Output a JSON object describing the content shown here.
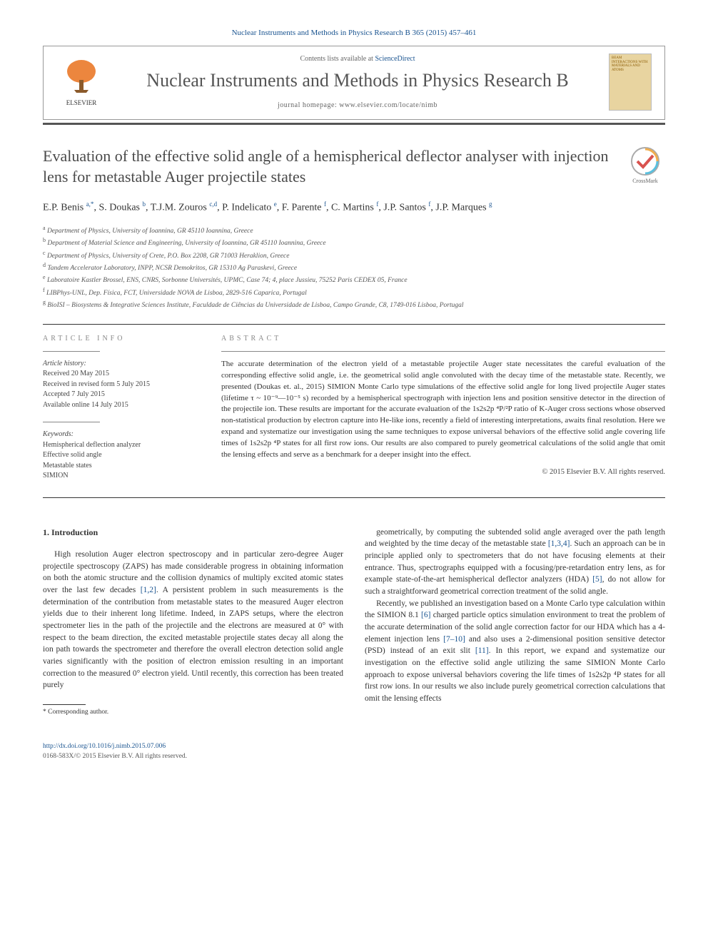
{
  "header": {
    "citation": "Nuclear Instruments and Methods in Physics Research B 365 (2015) 457–461",
    "contents_prefix": "Contents lists available at ",
    "contents_link": "ScienceDirect",
    "journal_name": "Nuclear Instruments and Methods in Physics Research B",
    "homepage_prefix": "journal homepage: ",
    "homepage_url": "www.elsevier.com/locate/nimb",
    "elsevier_label": "ELSEVIER",
    "cover_text": "BEAM INTERACTIONS WITH MATERIALS AND ATOMS"
  },
  "article": {
    "title": "Evaluation of the effective solid angle of a hemispherical deflector analyser with injection lens for metastable Auger projectile states",
    "crossmark_label": "CrossMark",
    "authors_html": "E.P. Benis <sup>a,*</sup>, S. Doukas <sup>b</sup>, T.J.M. Zouros <sup>c,d</sup>, P. Indelicato <sup>e</sup>, F. Parente <sup>f</sup>, C. Martins <sup>f</sup>, J.P. Santos <sup>f</sup>, J.P. Marques <sup>g</sup>",
    "affiliations": [
      {
        "sup": "a",
        "text": "Department of Physics, University of Ioannina, GR 45110 Ioannina, Greece"
      },
      {
        "sup": "b",
        "text": "Department of Material Science and Engineering, University of Ioannina, GR 45110 Ioannina, Greece"
      },
      {
        "sup": "c",
        "text": "Department of Physics, University of Crete, P.O. Box 2208, GR 71003 Heraklion, Greece"
      },
      {
        "sup": "d",
        "text": "Tandem Accelerator Laboratory, INPP, NCSR Demokritos, GR 15310 Ag Paraskevi, Greece"
      },
      {
        "sup": "e",
        "text": "Laboratoire Kastler Brossel, ENS, CNRS, Sorbonne Universités, UPMC, Case 74; 4, place Jussieu, 75252 Paris CEDEX 05, France"
      },
      {
        "sup": "f",
        "text": "LIBPhys-UNL, Dep. Física, FCT, Universidade NOVA de Lisboa, 2829-516 Caparica, Portugal"
      },
      {
        "sup": "g",
        "text": "BioISI – Biosystems & Integrative Sciences Institute, Faculdade de Ciências da Universidade de Lisboa, Campo Grande, C8, 1749-016 Lisboa, Portugal"
      }
    ]
  },
  "info": {
    "heading": "ARTICLE INFO",
    "history_label": "Article history:",
    "history": [
      "Received 20 May 2015",
      "Received in revised form 5 July 2015",
      "Accepted 7 July 2015",
      "Available online 14 July 2015"
    ],
    "keywords_label": "Keywords:",
    "keywords": [
      "Hemispherical deflection analyzer",
      "Effective solid angle",
      "Metastable states",
      "SIMION"
    ]
  },
  "abstract": {
    "heading": "ABSTRACT",
    "text": "The accurate determination of the electron yield of a metastable projectile Auger state necessitates the careful evaluation of the corresponding effective solid angle, i.e. the geometrical solid angle convoluted with the decay time of the metastable state. Recently, we presented (Doukas et. al., 2015) SIMION Monte Carlo type simulations of the effective solid angle for long lived projectile Auger states (lifetime τ ~ 10⁻⁹—10⁻⁵ s) recorded by a hemispherical spectrograph with injection lens and position sensitive detector in the direction of the projectile ion. These results are important for the accurate evaluation of the 1s2s2p ⁴P/²P ratio of K-Auger cross sections whose observed non-statistical production by electron capture into He-like ions, recently a field of interesting interpretations, awaits final resolution. Here we expand and systematize our investigation using the same techniques to expose universal behaviors of the effective solid angle covering life times of 1s2s2p ⁴P states for all first row ions. Our results are also compared to purely geometrical calculations of the solid angle that omit the lensing effects and serve as a benchmark for a deeper insight into the effect.",
    "copyright": "© 2015 Elsevier B.V. All rights reserved."
  },
  "body": {
    "section_heading": "1. Introduction",
    "col1_p1": "High resolution Auger electron spectroscopy and in particular zero-degree Auger projectile spectroscopy (ZAPS) has made considerable progress in obtaining information on both the atomic structure and the collision dynamics of multiply excited atomic states over the last few decades [1,2]. A persistent problem in such measurements is the determination of the contribution from metastable states to the measured Auger electron yields due to their inherent long lifetime. Indeed, in ZAPS setups, where the electron spectrometer lies in the path of the projectile and the electrons are measured at 0° with respect to the beam direction, the excited metastable projectile states decay all along the ion path towards the spectrometer and therefore the overall electron detection solid angle varies significantly with the position of electron emission resulting in an important correction to the measured 0° electron yield. Until recently, this correction has been treated purely",
    "col2_p1": "geometrically, by computing the subtended solid angle averaged over the path length and weighted by the time decay of the metastable state [1,3,4]. Such an approach can be in principle applied only to spectrometers that do not have focusing elements at their entrance. Thus, spectrographs equipped with a focusing/pre-retardation entry lens, as for example state-of-the-art hemispherical deflector analyzers (HDA) [5], do not allow for such a straightforward geometrical correction treatment of the solid angle.",
    "col2_p2": "Recently, we published an investigation based on a Monte Carlo type calculation within the SIMION 8.1 [6] charged particle optics simulation environment to treat the problem of the accurate determination of the solid angle correction factor for our HDA which has a 4-element injection lens [7–10] and also uses a 2-dimensional position sensitive detector (PSD) instead of an exit slit [11]. In this report, we expand and systematize our investigation on the effective solid angle utilizing the same SIMION Monte Carlo approach to expose universal behaviors covering the life times of 1s2s2p ⁴P states for all first row ions. In our results we also include purely geometrical correction calculations that omit the lensing effects"
  },
  "footer": {
    "corresponding": "* Corresponding author.",
    "doi": "http://dx.doi.org/10.1016/j.nimb.2015.07.006",
    "copyright_line": "0168-583X/© 2015 Elsevier B.V. All rights reserved."
  },
  "colors": {
    "link": "#1a5490",
    "text": "#333333",
    "header_rule": "#555555",
    "elsevier_orange": "#e9711c"
  }
}
